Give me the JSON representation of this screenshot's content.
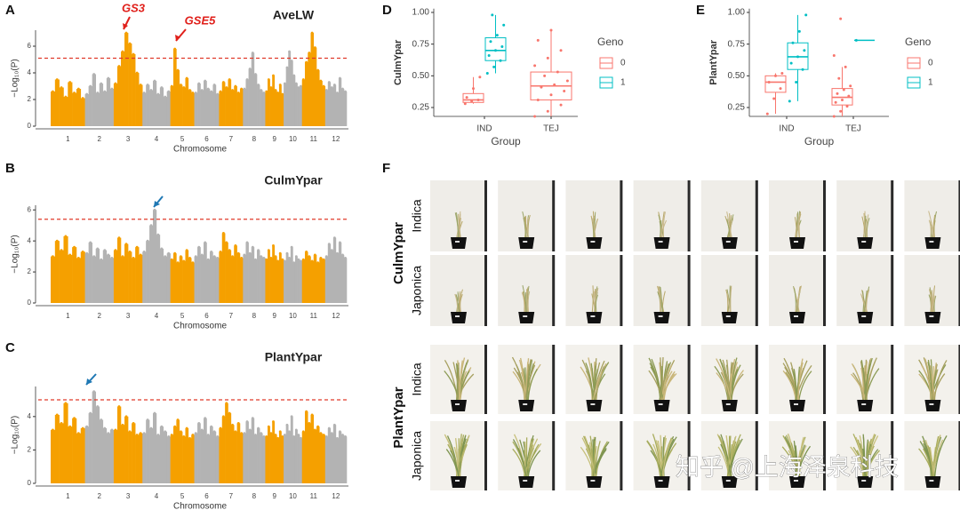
{
  "chart_data": [
    {
      "type": "manhattan",
      "panel_label": "A",
      "title": "AveLW",
      "x_label": "Chromosome",
      "y_label": "−Log₁₀(P)",
      "categories": [
        "1",
        "2",
        "3",
        "4",
        "5",
        "6",
        "7",
        "8",
        "9",
        "10",
        "11",
        "12"
      ],
      "colors": [
        "#f5a000",
        "#b3b3b3"
      ],
      "values": [
        [
          2.6,
          3.5,
          2.9,
          2.2,
          3.3,
          2.5,
          2.8,
          2.1
        ],
        [
          2.4,
          3.0,
          3.9,
          2.5,
          3.2,
          2.6,
          3.6,
          2.8
        ],
        [
          3.2,
          4.5,
          5.6,
          7.0,
          6.2,
          5.4,
          4.0,
          3.1
        ],
        [
          2.5,
          3.1,
          2.7,
          3.4,
          2.4,
          2.9,
          2.2,
          2.6
        ],
        [
          3.0,
          5.8,
          4.2,
          3.1,
          2.9,
          3.6,
          2.7,
          2.5
        ],
        [
          2.5,
          3.2,
          2.7,
          3.4,
          2.8,
          2.6,
          3.1,
          2.4
        ],
        [
          2.6,
          3.3,
          2.9,
          3.5,
          2.7,
          3.0,
          2.5,
          2.8
        ],
        [
          2.8,
          3.5,
          4.3,
          5.5,
          3.9,
          3.1,
          2.7,
          2.5
        ],
        [
          2.6,
          3.5,
          2.9,
          3.8,
          2.7,
          2.5,
          3.1,
          2.4
        ],
        [
          3.2,
          4.4,
          5.6,
          4.9,
          3.8,
          3.2,
          2.9,
          3.0
        ],
        [
          3.5,
          4.8,
          5.5,
          7.0,
          5.9,
          4.2,
          3.4,
          3.0
        ],
        [
          2.7,
          3.3,
          2.9,
          3.1,
          2.5,
          3.6,
          2.8,
          2.6
        ]
      ],
      "threshold": 5.1,
      "annotations": [
        "GS3",
        "GSE5"
      ],
      "ylim": [
        0,
        7.2
      ],
      "yticks": [
        0,
        2,
        4,
        6
      ]
    },
    {
      "type": "manhattan",
      "panel_label": "B",
      "title": "CulmYpar",
      "x_label": "Chromosome",
      "y_label": "−Log₁₀(P)",
      "categories": [
        "1",
        "2",
        "3",
        "4",
        "5",
        "6",
        "7",
        "8",
        "9",
        "10",
        "11",
        "12"
      ],
      "colors": [
        "#f5a000",
        "#b3b3b3"
      ],
      "values": [
        [
          3.0,
          4.0,
          3.4,
          4.3,
          3.1,
          3.6,
          2.9,
          3.3
        ],
        [
          3.2,
          3.9,
          3.0,
          3.5,
          2.8,
          3.4,
          3.1,
          2.9
        ],
        [
          3.4,
          4.2,
          3.0,
          3.8,
          3.3,
          2.9,
          3.6,
          3.1
        ],
        [
          3.3,
          4.0,
          5.0,
          6.0,
          4.4,
          3.5,
          3.0,
          3.2
        ],
        [
          2.8,
          3.2,
          2.6,
          3.0,
          2.7,
          3.4,
          2.9,
          2.6
        ],
        [
          3.0,
          3.6,
          3.1,
          3.9,
          2.8,
          3.3,
          3.0,
          2.9
        ],
        [
          3.3,
          4.5,
          3.9,
          3.4,
          3.0,
          3.7,
          3.2,
          2.9
        ],
        [
          3.1,
          3.9,
          3.2,
          3.6,
          2.8,
          3.4,
          3.0,
          2.9
        ],
        [
          2.8,
          3.4,
          2.9,
          3.7,
          3.0,
          2.7,
          3.2,
          2.8
        ],
        [
          2.7,
          3.2,
          2.9,
          3.6,
          2.6,
          3.0,
          2.8,
          2.7
        ],
        [
          2.8,
          3.3,
          3.0,
          2.7,
          3.1,
          2.6,
          2.9,
          2.8
        ],
        [
          3.0,
          3.8,
          3.4,
          4.2,
          3.2,
          3.9,
          3.1,
          2.9
        ]
      ],
      "threshold": 5.4,
      "ylim": [
        0,
        6.3
      ],
      "yticks": [
        0,
        2,
        4,
        6
      ]
    },
    {
      "type": "manhattan",
      "panel_label": "C",
      "title": "PlantYpar",
      "x_label": "Chromosome",
      "y_label": "−Log₁₀(P)",
      "categories": [
        "1",
        "2",
        "3",
        "4",
        "5",
        "6",
        "7",
        "8",
        "9",
        "10",
        "11",
        "12"
      ],
      "colors": [
        "#f5a000",
        "#b3b3b3"
      ],
      "values": [
        [
          3.2,
          4.1,
          3.6,
          4.8,
          3.4,
          3.9,
          3.0,
          3.3
        ],
        [
          3.4,
          4.2,
          5.5,
          4.6,
          3.8,
          3.3,
          3.0,
          3.2
        ],
        [
          3.2,
          4.6,
          3.5,
          4.0,
          3.1,
          3.6,
          2.9,
          3.0
        ],
        [
          3.0,
          3.8,
          3.3,
          4.2,
          2.9,
          3.4,
          3.1,
          2.8
        ],
        [
          2.9,
          3.4,
          3.8,
          3.1,
          2.8,
          3.3,
          2.7,
          2.9
        ],
        [
          3.0,
          3.6,
          3.2,
          3.9,
          2.9,
          3.4,
          3.1,
          2.8
        ],
        [
          3.3,
          4.0,
          4.8,
          4.2,
          3.5,
          3.1,
          3.6,
          3.0
        ],
        [
          3.0,
          3.7,
          3.2,
          3.9,
          2.9,
          3.3,
          3.0,
          2.8
        ],
        [
          2.8,
          3.4,
          3.0,
          3.7,
          2.9,
          2.7,
          3.1,
          2.8
        ],
        [
          2.9,
          3.5,
          3.1,
          4.0,
          2.8,
          3.2,
          2.9,
          2.7
        ],
        [
          3.1,
          4.3,
          3.6,
          4.1,
          3.2,
          3.4,
          3.0,
          2.9
        ],
        [
          2.8,
          3.3,
          3.0,
          3.5,
          2.7,
          3.1,
          2.9,
          2.8
        ]
      ],
      "threshold": 5.0,
      "ylim": [
        0,
        5.8
      ],
      "yticks": [
        0,
        2,
        4
      ]
    },
    {
      "type": "box",
      "panel_label": "D",
      "x_label": "Group",
      "y_label": "CulmYpar",
      "legend_title": "Geno",
      "categories": [
        "IND",
        "TEJ"
      ],
      "series": [
        {
          "name": "0",
          "color": "#f8766d",
          "boxes": [
            {
              "min": 0.28,
              "q1": 0.29,
              "median": 0.31,
              "q3": 0.36,
              "max": 0.49,
              "points": [
                0.28,
                0.3,
                0.31,
                0.33,
                0.4,
                0.49
              ]
            },
            {
              "min": 0.18,
              "q1": 0.31,
              "median": 0.42,
              "q3": 0.53,
              "max": 0.86,
              "points": [
                0.18,
                0.22,
                0.27,
                0.31,
                0.35,
                0.38,
                0.41,
                0.43,
                0.46,
                0.5,
                0.53,
                0.58,
                0.64,
                0.7,
                0.78,
                0.86
              ]
            }
          ]
        },
        {
          "name": "1",
          "color": "#00bfc4",
          "boxes": [
            {
              "min": 0.52,
              "q1": 0.62,
              "median": 0.7,
              "q3": 0.8,
              "max": 0.98,
              "points": [
                0.52,
                0.57,
                0.62,
                0.66,
                0.7,
                0.73,
                0.77,
                0.82,
                0.9,
                0.98
              ]
            },
            null
          ]
        }
      ],
      "ylim": [
        0.18,
        1.03
      ],
      "yticks": [
        0.25,
        {
          "value": 0.5,
          "label": "0.50"
        },
        0.75,
        {
          "value": 1,
          "label": "1.00"
        }
      ]
    },
    {
      "type": "box",
      "panel_label": "E",
      "x_label": "Group",
      "y_label": "PlantYpar",
      "legend_title": "Geno",
      "categories": [
        "IND",
        "TEJ"
      ],
      "series": [
        {
          "name": "0",
          "color": "#f8766d",
          "boxes": [
            {
              "min": 0.2,
              "q1": 0.37,
              "median": 0.45,
              "q3": 0.5,
              "max": 0.52,
              "points": [
                0.2,
                0.32,
                0.4,
                0.45,
                0.5,
                0.52
              ]
            },
            {
              "min": 0.18,
              "q1": 0.27,
              "median": 0.33,
              "q3": 0.4,
              "max": 0.57,
              "points": [
                0.18,
                0.22,
                0.26,
                0.29,
                0.31,
                0.34,
                0.36,
                0.39,
                0.42,
                0.48,
                0.57,
                0.66,
                0.95
              ]
            }
          ]
        },
        {
          "name": "1",
          "color": "#00bfc4",
          "boxes": [
            {
              "min": 0.3,
              "q1": 0.55,
              "median": 0.65,
              "q3": 0.76,
              "max": 0.98,
              "points": [
                0.3,
                0.45,
                0.55,
                0.6,
                0.65,
                0.7,
                0.76,
                0.85,
                0.98
              ]
            },
            {
              "min": 0.78,
              "q1": 0.78,
              "median": 0.78,
              "q3": 0.78,
              "max": 0.78,
              "points": [
                0.78
              ]
            }
          ]
        }
      ],
      "ylim": [
        0.18,
        1.03
      ],
      "yticks": [
        0.25,
        {
          "value": 0.5,
          "label": "0.50"
        },
        0.75,
        {
          "value": 1,
          "label": "1.00"
        }
      ]
    }
  ],
  "photo_panel": {
    "panel_label": "F",
    "groups": [
      {
        "trait": "CulmYpar",
        "rows": [
          "Indica",
          "Japonica"
        ]
      },
      {
        "trait": "PlantYpar",
        "rows": [
          "Indica",
          "Japonica"
        ]
      }
    ]
  },
  "watermark": "知乎 @上海泽泉科技"
}
